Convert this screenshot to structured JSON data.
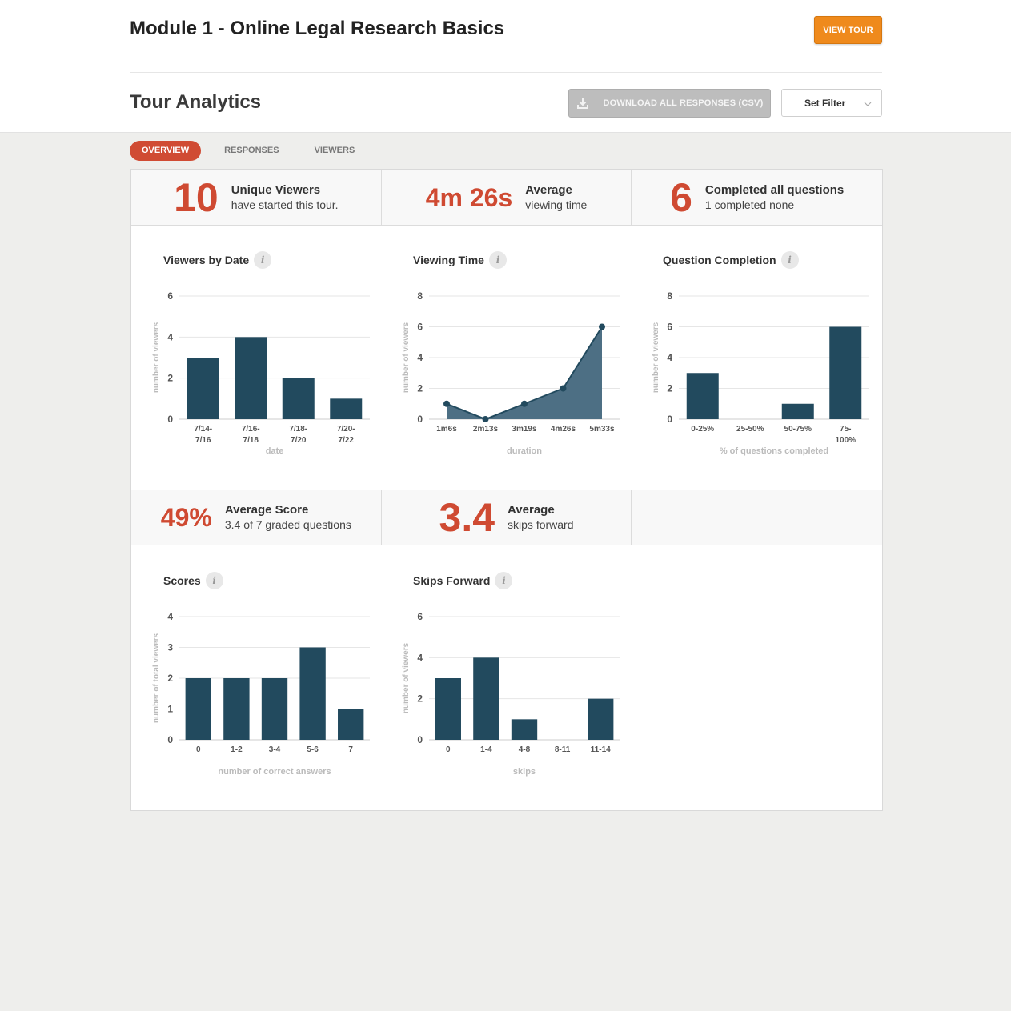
{
  "header": {
    "module_title": "Module 1 - Online Legal Research Basics",
    "view_tour_label": "VIEW TOUR",
    "analytics_title": "Tour Analytics",
    "download_label": "DOWNLOAD ALL RESPONSES (CSV)",
    "filter_label": "Set Filter"
  },
  "tabs": [
    {
      "label": "OVERVIEW",
      "active": true
    },
    {
      "label": "RESPONSES",
      "active": false
    },
    {
      "label": "VIEWERS",
      "active": false
    }
  ],
  "stats_top": [
    {
      "number": "10",
      "head": "Unique Viewers",
      "sub": "have started this tour."
    },
    {
      "number": "4m 26s",
      "head": "Average",
      "sub": "viewing time"
    },
    {
      "number": "6",
      "head": "Completed all questions",
      "sub": "1 completed none"
    }
  ],
  "stats_bottom": [
    {
      "number": "49%",
      "head": "Average Score",
      "sub": "3.4 of 7 graded questions"
    },
    {
      "number": "3.4",
      "head": "Average",
      "sub": "skips forward"
    }
  ],
  "colors": {
    "accent": "#cf4a32",
    "bar": "#224a5e",
    "area": "#4d6f84",
    "orange": "#ef8a1c"
  },
  "chart_data": [
    {
      "id": "viewers_by_date",
      "type": "bar",
      "title": "Viewers by Date",
      "categories": [
        "7/14-7/16",
        "7/16-7/18",
        "7/18-7/20",
        "7/20-7/22"
      ],
      "values": [
        3,
        4,
        2,
        1
      ],
      "xlabel": "date",
      "ylabel": "number of viewers",
      "yticks": [
        0,
        2,
        4,
        6
      ],
      "ylim": [
        0,
        6
      ],
      "grid": true
    },
    {
      "id": "viewing_time",
      "type": "area",
      "title": "Viewing Time",
      "categories": [
        "1m6s",
        "2m13s",
        "3m19s",
        "4m26s",
        "5m33s"
      ],
      "values": [
        1,
        0,
        1,
        2,
        6
      ],
      "xlabel": "duration",
      "ylabel": "number of viewers",
      "yticks": [
        0,
        2,
        4,
        6,
        8
      ],
      "ylim": [
        0,
        8
      ],
      "grid": true
    },
    {
      "id": "question_completion",
      "type": "bar",
      "title": "Question Completion",
      "categories": [
        "0-25%",
        "25-50%",
        "50-75%",
        "75-100%"
      ],
      "values": [
        3,
        0,
        1,
        6
      ],
      "xlabel": "% of questions completed",
      "ylabel": "number of viewers",
      "yticks": [
        0,
        2,
        4,
        6,
        8
      ],
      "ylim": [
        0,
        8
      ],
      "grid": true
    },
    {
      "id": "scores",
      "type": "bar",
      "title": "Scores",
      "categories": [
        "0",
        "1-2",
        "3-4",
        "5-6",
        "7"
      ],
      "values": [
        2,
        2,
        2,
        3,
        1
      ],
      "xlabel": "number of correct answers",
      "ylabel": "number of total viewers",
      "yticks": [
        0,
        1,
        2,
        3,
        4
      ],
      "ylim": [
        0,
        4
      ],
      "grid": true
    },
    {
      "id": "skips_forward",
      "type": "bar",
      "title": "Skips Forward",
      "categories": [
        "0",
        "1-4",
        "4-8",
        "8-11",
        "11-14"
      ],
      "values": [
        3,
        4,
        1,
        0,
        2
      ],
      "xlabel": "skips",
      "ylabel": "number of viewers",
      "yticks": [
        0,
        2,
        4,
        6
      ],
      "ylim": [
        0,
        6
      ],
      "grid": true
    }
  ]
}
